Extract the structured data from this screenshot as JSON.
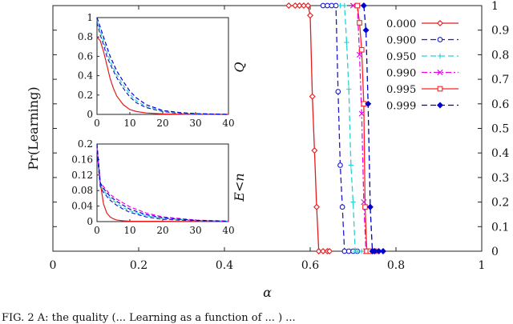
{
  "caption": "FIG. 2 A: the quality (... Learning as a function of ... ) ...",
  "chart_data": [
    {
      "type": "line",
      "xlabel": "α",
      "ylabel": "Pr(Learning)",
      "xlim": [
        0,
        1
      ],
      "ylim": [
        0,
        1
      ],
      "x_ticks": [
        "0",
        "0.2",
        "0.4",
        "0.6",
        "0.8",
        "1"
      ],
      "y_ticks_right": [
        "0",
        "0.1",
        "0.2",
        "0.3",
        "0.4",
        "0.5",
        "0.6",
        "0.7",
        "0.8",
        "0.9",
        "1"
      ],
      "legend_position": "top-right",
      "series": [
        {
          "name": "0.000",
          "color": "#e41a1c",
          "dash": "solid",
          "marker": "diamond",
          "x": [
            0.55,
            0.565,
            0.575,
            0.585,
            0.595,
            0.6,
            0.605,
            0.61,
            0.615,
            0.62,
            0.63,
            0.64,
            0.645
          ],
          "y": [
            1,
            1,
            1,
            1,
            1,
            0.96,
            0.63,
            0.41,
            0.18,
            0,
            0,
            0,
            0
          ]
        },
        {
          "name": "0.900",
          "color": "#1a1acc",
          "dash": "dashed",
          "marker": "circle",
          "x": [
            0.63,
            0.64,
            0.65,
            0.66,
            0.665,
            0.67,
            0.675,
            0.68,
            0.69,
            0.7,
            0.71
          ],
          "y": [
            1,
            1,
            1,
            1,
            0.65,
            0.35,
            0.18,
            0,
            0,
            0,
            0
          ]
        },
        {
          "name": "0.950",
          "color": "#22d3d3",
          "dash": "dashed",
          "marker": "plus",
          "x": [
            0.67,
            0.68,
            0.685,
            0.69,
            0.695,
            0.7,
            0.705,
            0.71,
            0.72,
            0.73
          ],
          "y": [
            1,
            1,
            0.85,
            0.66,
            0.35,
            0.2,
            0,
            0,
            0,
            0
          ]
        },
        {
          "name": "0.990",
          "color": "#ee00ee",
          "dash": "dashdot",
          "marker": "x",
          "x": [
            0.7,
            0.71,
            0.715,
            0.72,
            0.725,
            0.73,
            0.735,
            0.74,
            0.75
          ],
          "y": [
            1,
            1,
            0.8,
            0.56,
            0.2,
            0,
            0,
            0,
            0
          ]
        },
        {
          "name": "0.995",
          "color": "#ff2222",
          "dash": "solid",
          "marker": "square",
          "x": [
            0.71,
            0.715,
            0.72,
            0.725,
            0.728,
            0.732,
            0.74,
            0.75
          ],
          "y": [
            1,
            0.93,
            0.82,
            0.6,
            0.18,
            0,
            0,
            0
          ]
        },
        {
          "name": "0.999",
          "color": "#0000cc",
          "dash": "dashed",
          "marker": "filled-diamond",
          "x": [
            0.725,
            0.73,
            0.735,
            0.74,
            0.745,
            0.75,
            0.76,
            0.77
          ],
          "y": [
            1,
            0.9,
            0.6,
            0.18,
            0,
            0,
            0,
            0
          ]
        }
      ]
    },
    {
      "type": "line",
      "ylabel": "Q",
      "xlim": [
        0,
        40
      ],
      "ylim": [
        0,
        1
      ],
      "x_ticks": [
        "0",
        "10",
        "20",
        "30",
        "40"
      ],
      "y_ticks": [
        "0",
        "0.2",
        "0.4",
        "0.6",
        "0.8",
        "1"
      ],
      "series": [
        {
          "color": "#e41a1c",
          "x": [
            0,
            1,
            2,
            3,
            4,
            5,
            6,
            8,
            10,
            12,
            15,
            20,
            25,
            30,
            40
          ],
          "y": [
            0.8,
            0.76,
            0.65,
            0.51,
            0.37,
            0.27,
            0.19,
            0.1,
            0.05,
            0.03,
            0.015,
            0.005,
            0.002,
            0.001,
            0
          ]
        },
        {
          "color": "#1a1acc",
          "x": [
            0,
            1,
            2,
            3,
            4,
            6,
            8,
            10,
            12,
            15,
            20,
            25,
            30,
            40
          ],
          "y": [
            0.95,
            0.82,
            0.72,
            0.6,
            0.52,
            0.38,
            0.27,
            0.18,
            0.12,
            0.07,
            0.03,
            0.01,
            0.005,
            0
          ]
        },
        {
          "color": "#22d3d3",
          "x": [
            0,
            1,
            2,
            3,
            4,
            6,
            8,
            10,
            12,
            15,
            20,
            25,
            30,
            40
          ],
          "y": [
            0.98,
            0.86,
            0.76,
            0.65,
            0.55,
            0.41,
            0.3,
            0.21,
            0.14,
            0.08,
            0.035,
            0.015,
            0.006,
            0
          ]
        },
        {
          "color": "#0000cc",
          "x": [
            0,
            1,
            2,
            3,
            4,
            6,
            8,
            10,
            12,
            15,
            20,
            25,
            30,
            40
          ],
          "y": [
            1.0,
            0.9,
            0.8,
            0.7,
            0.6,
            0.45,
            0.34,
            0.24,
            0.17,
            0.1,
            0.04,
            0.02,
            0.008,
            0
          ]
        }
      ]
    },
    {
      "type": "line",
      "ylabel": "E<n",
      "xlim": [
        0,
        40
      ],
      "ylim": [
        0,
        0.2
      ],
      "x_ticks": [
        "0",
        "10",
        "20",
        "30",
        "40"
      ],
      "y_ticks": [
        "0",
        "0.04",
        "0.08",
        "0.12",
        "0.16",
        "0.2"
      ],
      "series": [
        {
          "color": "#e41a1c",
          "x": [
            0,
            1,
            2,
            3,
            4,
            5,
            6,
            8,
            10,
            40
          ],
          "y": [
            0.19,
            0.1,
            0.045,
            0.022,
            0.012,
            0.007,
            0.004,
            0.002,
            0.001,
            0
          ]
        },
        {
          "color": "#1a1acc",
          "x": [
            0,
            1,
            2,
            4,
            6,
            8,
            10,
            15,
            20,
            30,
            40
          ],
          "y": [
            0.18,
            0.09,
            0.075,
            0.055,
            0.042,
            0.032,
            0.024,
            0.012,
            0.006,
            0.002,
            0.001
          ]
        },
        {
          "color": "#22d3d3",
          "x": [
            0,
            1,
            2,
            4,
            6,
            8,
            10,
            15,
            20,
            30,
            40
          ],
          "y": [
            0.19,
            0.095,
            0.08,
            0.06,
            0.047,
            0.036,
            0.028,
            0.015,
            0.008,
            0.003,
            0.001
          ]
        },
        {
          "color": "#ee00ee",
          "x": [
            0,
            1,
            2,
            4,
            6,
            8,
            10,
            15,
            20,
            30,
            40
          ],
          "y": [
            0.19,
            0.1,
            0.09,
            0.07,
            0.058,
            0.048,
            0.038,
            0.022,
            0.012,
            0.004,
            0.001
          ]
        },
        {
          "color": "#0000cc",
          "x": [
            0,
            1,
            2,
            4,
            6,
            8,
            10,
            15,
            20,
            30,
            40
          ],
          "y": [
            0.2,
            0.1,
            0.085,
            0.065,
            0.052,
            0.042,
            0.032,
            0.018,
            0.01,
            0.003,
            0.001
          ]
        }
      ]
    }
  ]
}
